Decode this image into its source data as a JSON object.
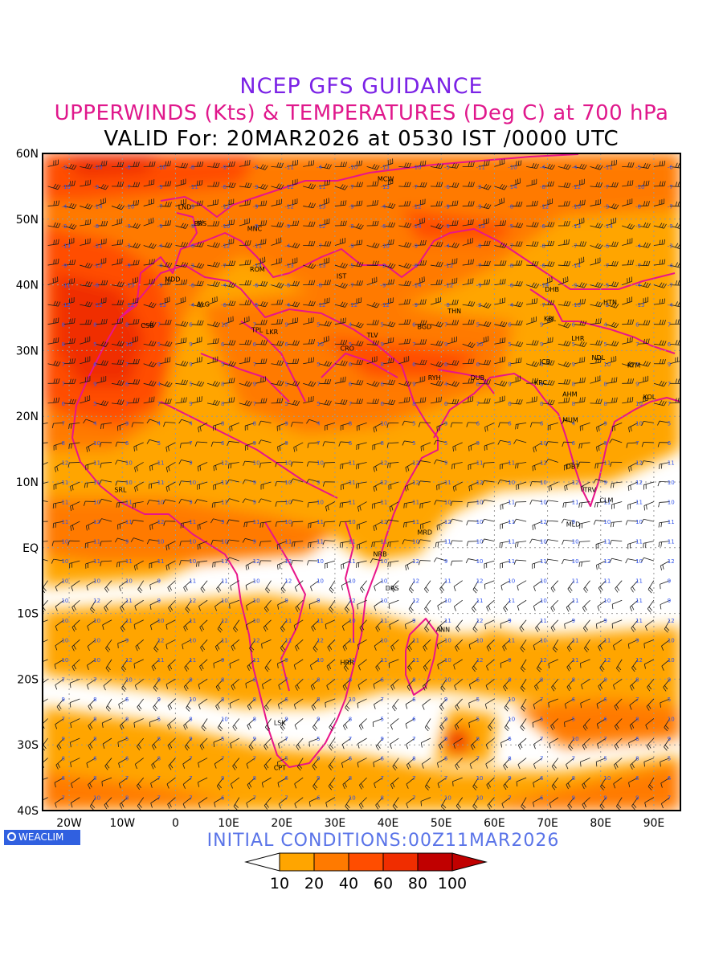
{
  "header": {
    "line1": "NCEP GFS GUIDANCE",
    "line2": "UPPERWINDS (Kts) & TEMPERATURES (Deg C) at 700 hPa",
    "line3": "VALID For: 20MAR2026 at 0530 IST /0000 UTC"
  },
  "colors": {
    "title1": "#7b22e6",
    "title2": "#e0188c",
    "coast": "#e8158a",
    "barb": "#1a1a1a",
    "temperature_text": "#3355ee",
    "brand_bg": "#3060e0",
    "initial_text": "#5a74e8"
  },
  "map": {
    "lat_labels": [
      "60N",
      "50N",
      "40N",
      "30N",
      "20N",
      "10N",
      "EQ",
      "10S",
      "20S",
      "30S",
      "40S"
    ],
    "lon_labels": [
      "20W",
      "10W",
      "0",
      "10E",
      "20E",
      "30E",
      "40E",
      "50E",
      "60E",
      "70E",
      "80E",
      "90E"
    ],
    "cities": [
      {
        "name": "LND",
        "lon": 0.5,
        "lat": 51.5
      },
      {
        "name": "PRS",
        "lon": 3.5,
        "lat": 49.0
      },
      {
        "name": "MNC",
        "lon": 13.5,
        "lat": 48.2
      },
      {
        "name": "MCW",
        "lon": 38.0,
        "lat": 55.8
      },
      {
        "name": "ROM",
        "lon": 14.0,
        "lat": 42.0
      },
      {
        "name": "IST",
        "lon": 30.3,
        "lat": 41.0
      },
      {
        "name": "MDD",
        "lon": -2.0,
        "lat": 40.5
      },
      {
        "name": "ALG",
        "lon": 4.0,
        "lat": 36.7
      },
      {
        "name": "CSB",
        "lon": -6.5,
        "lat": 33.5
      },
      {
        "name": "TPL",
        "lon": 14.3,
        "lat": 32.8
      },
      {
        "name": "LKR",
        "lon": 17.0,
        "lat": 32.5
      },
      {
        "name": "CRO",
        "lon": 31.0,
        "lat": 30.0
      },
      {
        "name": "TLV",
        "lon": 36.0,
        "lat": 32.0
      },
      {
        "name": "BGD",
        "lon": 45.5,
        "lat": 33.3
      },
      {
        "name": "THN",
        "lon": 51.2,
        "lat": 35.7
      },
      {
        "name": "RYH",
        "lon": 47.5,
        "lat": 25.5
      },
      {
        "name": "DUB",
        "lon": 55.5,
        "lat": 25.5
      },
      {
        "name": "DHB",
        "lon": 69.5,
        "lat": 39.0
      },
      {
        "name": "HTN",
        "lon": 80.5,
        "lat": 37.0
      },
      {
        "name": "KBL",
        "lon": 69.3,
        "lat": 34.5
      },
      {
        "name": "LHR",
        "lon": 74.5,
        "lat": 31.5
      },
      {
        "name": "JCB",
        "lon": 68.5,
        "lat": 28.0
      },
      {
        "name": "NDL",
        "lon": 78.3,
        "lat": 28.6
      },
      {
        "name": "KTM",
        "lon": 85.0,
        "lat": 27.4
      },
      {
        "name": "KRC",
        "lon": 67.5,
        "lat": 24.8
      },
      {
        "name": "AHM",
        "lon": 72.8,
        "lat": 23.0
      },
      {
        "name": "KOL",
        "lon": 88.0,
        "lat": 22.6
      },
      {
        "name": "MUM",
        "lon": 72.8,
        "lat": 19.1
      },
      {
        "name": "DBT",
        "lon": 73.5,
        "lat": 12.0
      },
      {
        "name": "TRV",
        "lon": 76.8,
        "lat": 8.5
      },
      {
        "name": "CLM",
        "lon": 79.8,
        "lat": 6.9
      },
      {
        "name": "MLD",
        "lon": 73.5,
        "lat": 3.2
      },
      {
        "name": "SRL",
        "lon": -11.5,
        "lat": 8.5
      },
      {
        "name": "MRD",
        "lon": 45.5,
        "lat": 2.0
      },
      {
        "name": "NRB",
        "lon": 37.2,
        "lat": -1.3
      },
      {
        "name": "DRS",
        "lon": 39.5,
        "lat": -6.5
      },
      {
        "name": "ANN",
        "lon": 49.0,
        "lat": -12.8
      },
      {
        "name": "HRR",
        "lon": 31.0,
        "lat": -17.8
      },
      {
        "name": "LSK",
        "lon": 18.5,
        "lat": -27.0
      },
      {
        "name": "CPT",
        "lon": 18.5,
        "lat": -33.8
      }
    ]
  },
  "footer": {
    "brand": "WEACLIM",
    "brand_icon": "circle-logo-icon",
    "initial_conditions": "INITIAL  CONDITIONS:00Z11MAR2026"
  },
  "legend": {
    "labels": [
      "10",
      "20",
      "40",
      "60",
      "80",
      "100"
    ],
    "colors": [
      "#ffa500",
      "#ff7a00",
      "#ff4d00",
      "#f02d00",
      "#c00000"
    ],
    "arrow_left_color": "#ffffff",
    "arrow_right_color": "#c00000"
  }
}
